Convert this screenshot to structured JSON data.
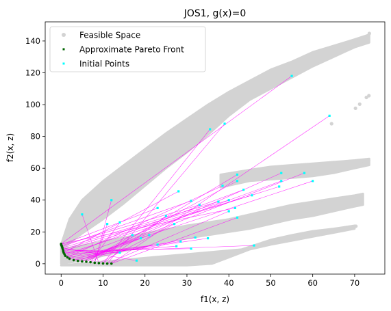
{
  "chart_data": {
    "type": "scatter",
    "title": "JOS1, g(x)=0",
    "xlabel": "f1(x, z)",
    "ylabel": "f2(x, z)",
    "xlim": [
      -3.8,
      77.2
    ],
    "ylim": [
      -6.5,
      152
    ],
    "xticks": [
      0,
      10,
      20,
      30,
      40,
      50,
      60,
      70
    ],
    "yticks": [
      0,
      20,
      40,
      60,
      80,
      100,
      120,
      140
    ],
    "legend_position": "top-left",
    "grid": false,
    "series": [
      {
        "name": "Feasible Space",
        "color": "#d3d3d3"
      },
      {
        "name": "Approximate Pareto Front",
        "color": "#006400"
      },
      {
        "name": "Initial Points",
        "color": "#00ffff"
      }
    ],
    "feasible_region": {
      "upper_band": {
        "upper": [
          [
            0,
            12
          ],
          [
            2,
            28
          ],
          [
            5,
            40
          ],
          [
            10,
            52
          ],
          [
            15,
            62
          ],
          [
            20,
            72
          ],
          [
            25,
            82
          ],
          [
            30,
            91
          ],
          [
            35,
            100
          ],
          [
            40,
            108
          ],
          [
            45,
            115
          ],
          [
            50,
            122
          ],
          [
            55,
            127
          ],
          [
            60,
            133
          ],
          [
            65,
            137
          ],
          [
            70,
            141
          ],
          [
            73.5,
            144
          ]
        ],
        "lower": [
          [
            73.5,
            139
          ],
          [
            70,
            136
          ],
          [
            65,
            130
          ],
          [
            60,
            124
          ],
          [
            55,
            117
          ],
          [
            50,
            110
          ],
          [
            45,
            103
          ],
          [
            40,
            93
          ],
          [
            35,
            81
          ],
          [
            30,
            70
          ],
          [
            25,
            60
          ],
          [
            20,
            49
          ],
          [
            15,
            38
          ],
          [
            10,
            28
          ],
          [
            5,
            19
          ],
          [
            0,
            9
          ]
        ]
      },
      "middle_band": {
        "upper": [
          [
            38,
            56
          ],
          [
            45,
            59
          ],
          [
            50,
            61
          ],
          [
            55,
            62
          ],
          [
            60,
            63
          ],
          [
            65,
            64
          ],
          [
            70,
            65
          ],
          [
            73.5,
            66
          ]
        ],
        "lower": [
          [
            73.5,
            62
          ],
          [
            70,
            60
          ],
          [
            65,
            57
          ],
          [
            60,
            55
          ],
          [
            55,
            54
          ],
          [
            50,
            53
          ],
          [
            45,
            52
          ],
          [
            38,
            48
          ]
        ]
      },
      "lower_band": {
        "upper": [
          [
            0,
            9
          ],
          [
            10,
            14
          ],
          [
            20,
            19
          ],
          [
            30,
            24
          ],
          [
            40,
            28
          ],
          [
            45,
            31
          ],
          [
            50,
            34
          ],
          [
            55,
            37
          ],
          [
            60,
            39
          ],
          [
            65,
            41
          ],
          [
            70,
            43
          ],
          [
            72,
            44
          ]
        ],
        "lower": [
          [
            72,
            37
          ],
          [
            70,
            36
          ],
          [
            65,
            33
          ],
          [
            60,
            30
          ],
          [
            55,
            28
          ],
          [
            50,
            25
          ],
          [
            45,
            22
          ],
          [
            40,
            20
          ],
          [
            35,
            18
          ],
          [
            30,
            16
          ],
          [
            25,
            14
          ],
          [
            20,
            11
          ],
          [
            15,
            8
          ],
          [
            10,
            5
          ],
          [
            5,
            2
          ],
          [
            0,
            0
          ]
        ]
      },
      "bottom_branch": {
        "upper": [
          [
            43,
            9
          ],
          [
            50,
            15
          ],
          [
            55,
            18
          ],
          [
            60,
            20.5
          ],
          [
            65,
            22
          ],
          [
            70,
            24
          ]
        ],
        "lower": [
          [
            70,
            22
          ],
          [
            65,
            19.5
          ],
          [
            60,
            17
          ],
          [
            55,
            14.5
          ],
          [
            50,
            12
          ],
          [
            45,
            9
          ],
          [
            40,
            4
          ],
          [
            36,
            0
          ],
          [
            30,
            -1
          ],
          [
            20,
            -1
          ],
          [
            10,
            -1
          ],
          [
            0,
            -1
          ]
        ]
      },
      "notch": [
        [
          38,
          56
        ],
        [
          40,
          51
        ],
        [
          41,
          46
        ],
        [
          42,
          42
        ],
        [
          44,
          40
        ],
        [
          46,
          39
        ]
      ],
      "scatter": [
        [
          72.8,
          104.5
        ],
        [
          73.4,
          105.6
        ],
        [
          71.2,
          100.3
        ],
        [
          70.2,
          97.7
        ],
        [
          73.5,
          144.7
        ],
        [
          72.5,
          142
        ],
        [
          73.3,
          65
        ],
        [
          71.5,
          64
        ],
        [
          69.7,
          23.2
        ],
        [
          70.3,
          23.6
        ],
        [
          68.5,
          22.6
        ],
        [
          66.2,
          61.8
        ],
        [
          64.5,
          88
        ]
      ]
    },
    "pareto_front": [
      [
        0,
        12.5
      ],
      [
        0,
        12
      ],
      [
        0.1,
        11.5
      ],
      [
        0.2,
        10.8
      ],
      [
        0.3,
        10
      ],
      [
        0.4,
        9
      ],
      [
        0.5,
        8
      ],
      [
        0.6,
        7
      ],
      [
        0.8,
        6
      ],
      [
        1,
        5
      ],
      [
        1.5,
        4
      ],
      [
        2,
        3.2
      ],
      [
        3,
        2.3
      ],
      [
        4,
        1.8
      ],
      [
        5,
        1.5
      ],
      [
        6,
        1.3
      ],
      [
        7,
        1
      ],
      [
        8,
        0.6
      ],
      [
        9,
        0.4
      ],
      [
        10,
        0.2
      ],
      [
        11,
        0.1
      ],
      [
        12,
        0.1
      ]
    ],
    "initial_points": [
      [
        55,
        118
      ],
      [
        64,
        93
      ],
      [
        39,
        88
      ],
      [
        35.5,
        84.5
      ],
      [
        5,
        31
      ],
      [
        12,
        40
      ],
      [
        42,
        56
      ],
      [
        42,
        52
      ],
      [
        52.5,
        57
      ],
      [
        58,
        57
      ],
      [
        60,
        52
      ],
      [
        52.5,
        52
      ],
      [
        38.5,
        49
      ],
      [
        43.5,
        46.5
      ],
      [
        52,
        48.5
      ],
      [
        28,
        45.5
      ],
      [
        45.5,
        43
      ],
      [
        40,
        40
      ],
      [
        37.5,
        39
      ],
      [
        31,
        39.5
      ],
      [
        33,
        37
      ],
      [
        23,
        35
      ],
      [
        41.5,
        35
      ],
      [
        42,
        29
      ],
      [
        40,
        33
      ],
      [
        25,
        30
      ],
      [
        27,
        25
      ],
      [
        11,
        25
      ],
      [
        14,
        26
      ],
      [
        17,
        18
      ],
      [
        21,
        18
      ],
      [
        19,
        16
      ],
      [
        32,
        16.5
      ],
      [
        35,
        16
      ],
      [
        28.5,
        14
      ],
      [
        23,
        12
      ],
      [
        27.5,
        11
      ],
      [
        46,
        11.5
      ],
      [
        31,
        9.5
      ],
      [
        14,
        7
      ],
      [
        18,
        2
      ]
    ]
  }
}
